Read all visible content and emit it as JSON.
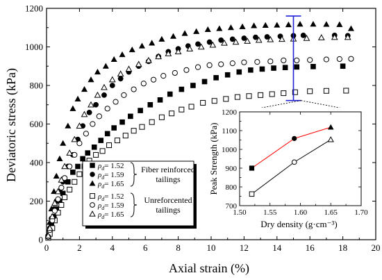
{
  "chart_data": [
    {
      "type": "scatter",
      "xlabel": "Axial strain (%)",
      "ylabel": "Deviatoric stress (kPa)",
      "xlim": [
        0,
        20
      ],
      "ylim": [
        0,
        1200
      ],
      "x_ticks": [
        "0",
        "2",
        "4",
        "6",
        "8",
        "10",
        "12",
        "14",
        "16",
        "18",
        "20"
      ],
      "y_ticks": [
        "0",
        "200",
        "400",
        "600",
        "800",
        "1000",
        "1200"
      ],
      "legend": {
        "placement": "bottom-left",
        "rho_symbol": "ρ",
        "rho_subscript": "d",
        "rho_eq": "= ",
        "groups": [
          {
            "label_lines": [
              "Fiber reinforced",
              "tailings"
            ],
            "entries": [
              "1.52",
              "1.59",
              "1.65"
            ]
          },
          {
            "label_lines": [
              "Unreforcented",
              "tailings"
            ],
            "entries": [
              "1.52",
              "1.59",
              "1.65"
            ]
          }
        ]
      },
      "series": [
        {
          "name": "ρd = 1.52",
          "group": "Fiber reinforced tailings",
          "marker": "square",
          "filled": true,
          "x": [
            0.1,
            0.2,
            0.3,
            0.45,
            0.6,
            0.8,
            1.0,
            1.3,
            1.6,
            1.9,
            2.2,
            2.5,
            2.9,
            3.3,
            3.7,
            4.1,
            4.6,
            5.1,
            5.7,
            6.3,
            6.9,
            7.5,
            8.2,
            8.9,
            9.6,
            10.3,
            11.0,
            11.7,
            12.4,
            13.1,
            13.8,
            14.5,
            15.2,
            16.2,
            18.0
          ],
          "y": [
            15,
            45,
            80,
            120,
            160,
            200,
            240,
            300,
            350,
            380,
            420,
            450,
            480,
            515,
            550,
            580,
            610,
            640,
            670,
            700,
            725,
            755,
            780,
            800,
            820,
            840,
            855,
            870,
            880,
            885,
            890,
            893,
            896,
            898,
            900
          ]
        },
        {
          "name": "ρd = 1.59",
          "group": "Fiber reinforced tailings",
          "marker": "circle",
          "filled": true,
          "x": [
            0.1,
            0.2,
            0.3,
            0.45,
            0.6,
            0.8,
            1.0,
            1.3,
            1.6,
            1.9,
            2.2,
            2.6,
            3.0,
            3.5,
            4.0,
            4.5,
            5.0,
            5.6,
            6.2,
            6.8,
            7.4,
            8.0,
            8.6,
            9.2,
            9.9,
            10.6,
            11.3,
            12.0,
            12.7,
            13.4,
            14.2,
            15.0,
            15.6,
            17.5,
            18.3
          ],
          "y": [
            20,
            60,
            110,
            160,
            200,
            250,
            300,
            380,
            440,
            520,
            590,
            660,
            700,
            750,
            800,
            835,
            870,
            900,
            925,
            950,
            975,
            990,
            1005,
            1015,
            1025,
            1035,
            1040,
            1045,
            1050,
            1052,
            1055,
            1058,
            1060,
            1060,
            1058
          ]
        },
        {
          "name": "ρd = 1.65",
          "group": "Fiber reinforced tailings",
          "marker": "triangle",
          "filled": true,
          "x": [
            0.1,
            0.2,
            0.3,
            0.45,
            0.6,
            0.8,
            1.0,
            1.3,
            1.6,
            1.9,
            2.3,
            2.7,
            3.1,
            3.6,
            4.1,
            4.6,
            5.2,
            5.8,
            6.4,
            7.0,
            7.7,
            8.4,
            9.1,
            9.8,
            10.5,
            11.2,
            11.9,
            12.6,
            13.3,
            14.0,
            14.7,
            15.4,
            16.2,
            17.0,
            17.8,
            18.5
          ],
          "y": [
            30,
            90,
            160,
            250,
            330,
            420,
            500,
            590,
            680,
            730,
            780,
            830,
            870,
            900,
            935,
            960,
            985,
            1005,
            1020,
            1040,
            1055,
            1070,
            1080,
            1090,
            1095,
            1100,
            1105,
            1110,
            1112,
            1113,
            1115,
            1118,
            1118,
            1117,
            1116,
            1095
          ]
        },
        {
          "name": "ρd = 1.52",
          "group": "Unreforcented tailings",
          "marker": "square",
          "filled": false,
          "x": [
            0.1,
            0.2,
            0.35,
            0.5,
            0.7,
            0.9,
            1.1,
            1.4,
            1.7,
            2.0,
            2.3,
            2.6,
            3.0,
            3.4,
            3.8,
            4.3,
            4.8,
            5.3,
            5.8,
            6.4,
            7.0,
            7.6,
            8.2,
            8.8,
            9.5,
            10.2,
            10.9,
            11.6,
            12.3,
            13.0,
            13.7,
            14.4,
            15.1,
            16.0,
            17.0,
            18.2
          ],
          "y": [
            10,
            30,
            60,
            100,
            140,
            180,
            220,
            260,
            300,
            340,
            380,
            410,
            440,
            460,
            490,
            515,
            540,
            565,
            585,
            610,
            635,
            655,
            675,
            690,
            710,
            720,
            730,
            740,
            745,
            750,
            755,
            760,
            765,
            770,
            772,
            773
          ]
        },
        {
          "name": "ρd = 1.59",
          "group": "Unreforcented tailings",
          "marker": "circle",
          "filled": false,
          "x": [
            0.1,
            0.2,
            0.35,
            0.5,
            0.7,
            0.9,
            1.1,
            1.4,
            1.7,
            2.0,
            2.4,
            2.8,
            3.2,
            3.7,
            4.2,
            4.7,
            5.3,
            5.9,
            6.5,
            7.1,
            7.8,
            8.5,
            9.2,
            9.9,
            10.6,
            11.3,
            12.0,
            12.8,
            13.6,
            14.4,
            15.2,
            16.0,
            17.0,
            17.8,
            18.5
          ],
          "y": [
            15,
            50,
            100,
            150,
            210,
            270,
            320,
            380,
            440,
            500,
            550,
            600,
            640,
            680,
            715,
            750,
            780,
            810,
            830,
            850,
            865,
            880,
            895,
            905,
            910,
            915,
            920,
            922,
            925,
            930,
            930,
            932,
            935,
            937,
            938
          ]
        },
        {
          "name": "ρd = 1.65",
          "group": "Unreforcented tailings",
          "marker": "triangle",
          "filled": false,
          "x": [
            0.1,
            0.2,
            0.35,
            0.5,
            0.7,
            0.9,
            1.1,
            1.4,
            1.7,
            2.0,
            2.3,
            2.7,
            3.1,
            3.5,
            4.0,
            4.5,
            5.0,
            5.6,
            6.2,
            6.8,
            7.4,
            8.0,
            8.7,
            9.4,
            10.1,
            10.8,
            11.5,
            12.2,
            12.9,
            13.6,
            14.3,
            15.0,
            15.8,
            16.7,
            17.5,
            18.3
          ],
          "y": [
            20,
            60,
            120,
            190,
            250,
            310,
            380,
            450,
            520,
            590,
            650,
            700,
            750,
            790,
            830,
            860,
            885,
            910,
            930,
            950,
            965,
            975,
            990,
            1000,
            1010,
            1020,
            1025,
            1030,
            1035,
            1038,
            1040,
            1042,
            1045,
            1048,
            1050,
            1050
          ]
        }
      ]
    },
    {
      "type": "line",
      "placement": "inset",
      "xlabel": "Dry density (g·cm⁻³)",
      "ylabel": "Peak Strength (kPa)",
      "xlim": [
        1.5,
        1.7
      ],
      "ylim": [
        700,
        1200
      ],
      "x_ticks": [
        "1.50",
        "1.55",
        "1.60",
        "1.65",
        "1.70"
      ],
      "y_ticks": [
        "700",
        "800",
        "900",
        "1000",
        "1100",
        "1200"
      ],
      "series": [
        {
          "name": "Fiber reinforced tailings",
          "color": "#ff0000",
          "x": [
            1.52,
            1.59,
            1.65
          ],
          "y": [
            900,
            1058,
            1118
          ],
          "markers": [
            "square",
            "circle",
            "triangle"
          ],
          "filled": true
        },
        {
          "name": "Unreforcented tailings",
          "color": "#000000",
          "x": [
            1.52,
            1.59,
            1.65
          ],
          "y": [
            762,
            932,
            1052
          ],
          "markers": [
            "square",
            "circle",
            "triangle"
          ],
          "filled": false
        }
      ]
    }
  ],
  "annotation": {
    "color": "#1f1fd6",
    "strain": 15.0,
    "stress_low": 722,
    "stress_high": 1160
  }
}
